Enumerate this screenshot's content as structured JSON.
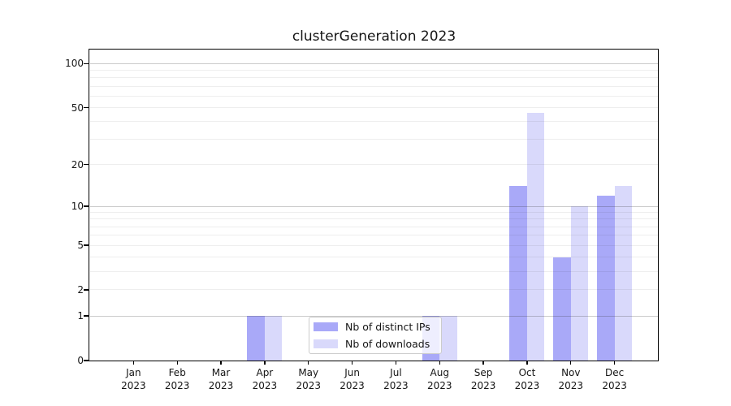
{
  "title": "clusterGeneration 2023",
  "colors": {
    "distinct_ips": "#a9a9f8",
    "downloads": "#d9d9fb",
    "grid_major": "rgba(50,50,50,0.26)",
    "grid_minor": "rgba(40,40,40,0.08)",
    "spine": "#000000"
  },
  "legend": {
    "items": [
      {
        "label": "Nb of distinct IPs",
        "color_key": "distinct_ips"
      },
      {
        "label": "Nb of downloads",
        "color_key": "downloads"
      }
    ]
  },
  "chart_data": {
    "type": "bar",
    "title": "clusterGeneration 2023",
    "xlabel": "",
    "ylabel": "",
    "yscale": "log1p",
    "ylim": [
      0,
      125
    ],
    "yticks": [
      0,
      1,
      2,
      5,
      10,
      20,
      50,
      100
    ],
    "major_gridlines": [
      1,
      10,
      100
    ],
    "minor_gridlines": [
      2,
      3,
      4,
      5,
      6,
      7,
      8,
      9,
      20,
      30,
      40,
      50,
      60,
      70,
      80,
      90
    ],
    "grid": true,
    "legend_position": "lower center",
    "categories": [
      "Jan 2023",
      "Feb 2023",
      "Mar 2023",
      "Apr 2023",
      "May 2023",
      "Jun 2023",
      "Jul 2023",
      "Aug 2023",
      "Sep 2023",
      "Oct 2023",
      "Nov 2023",
      "Dec 2023"
    ],
    "series": [
      {
        "name": "Nb of distinct IPs",
        "color_key": "distinct_ips",
        "values": [
          0,
          0,
          0,
          1,
          0,
          0,
          0,
          1,
          0,
          14,
          4,
          12
        ]
      },
      {
        "name": "Nb of downloads",
        "color_key": "downloads",
        "values": [
          0,
          0,
          0,
          1,
          0,
          0,
          0,
          1,
          0,
          46,
          10,
          14
        ]
      }
    ]
  }
}
